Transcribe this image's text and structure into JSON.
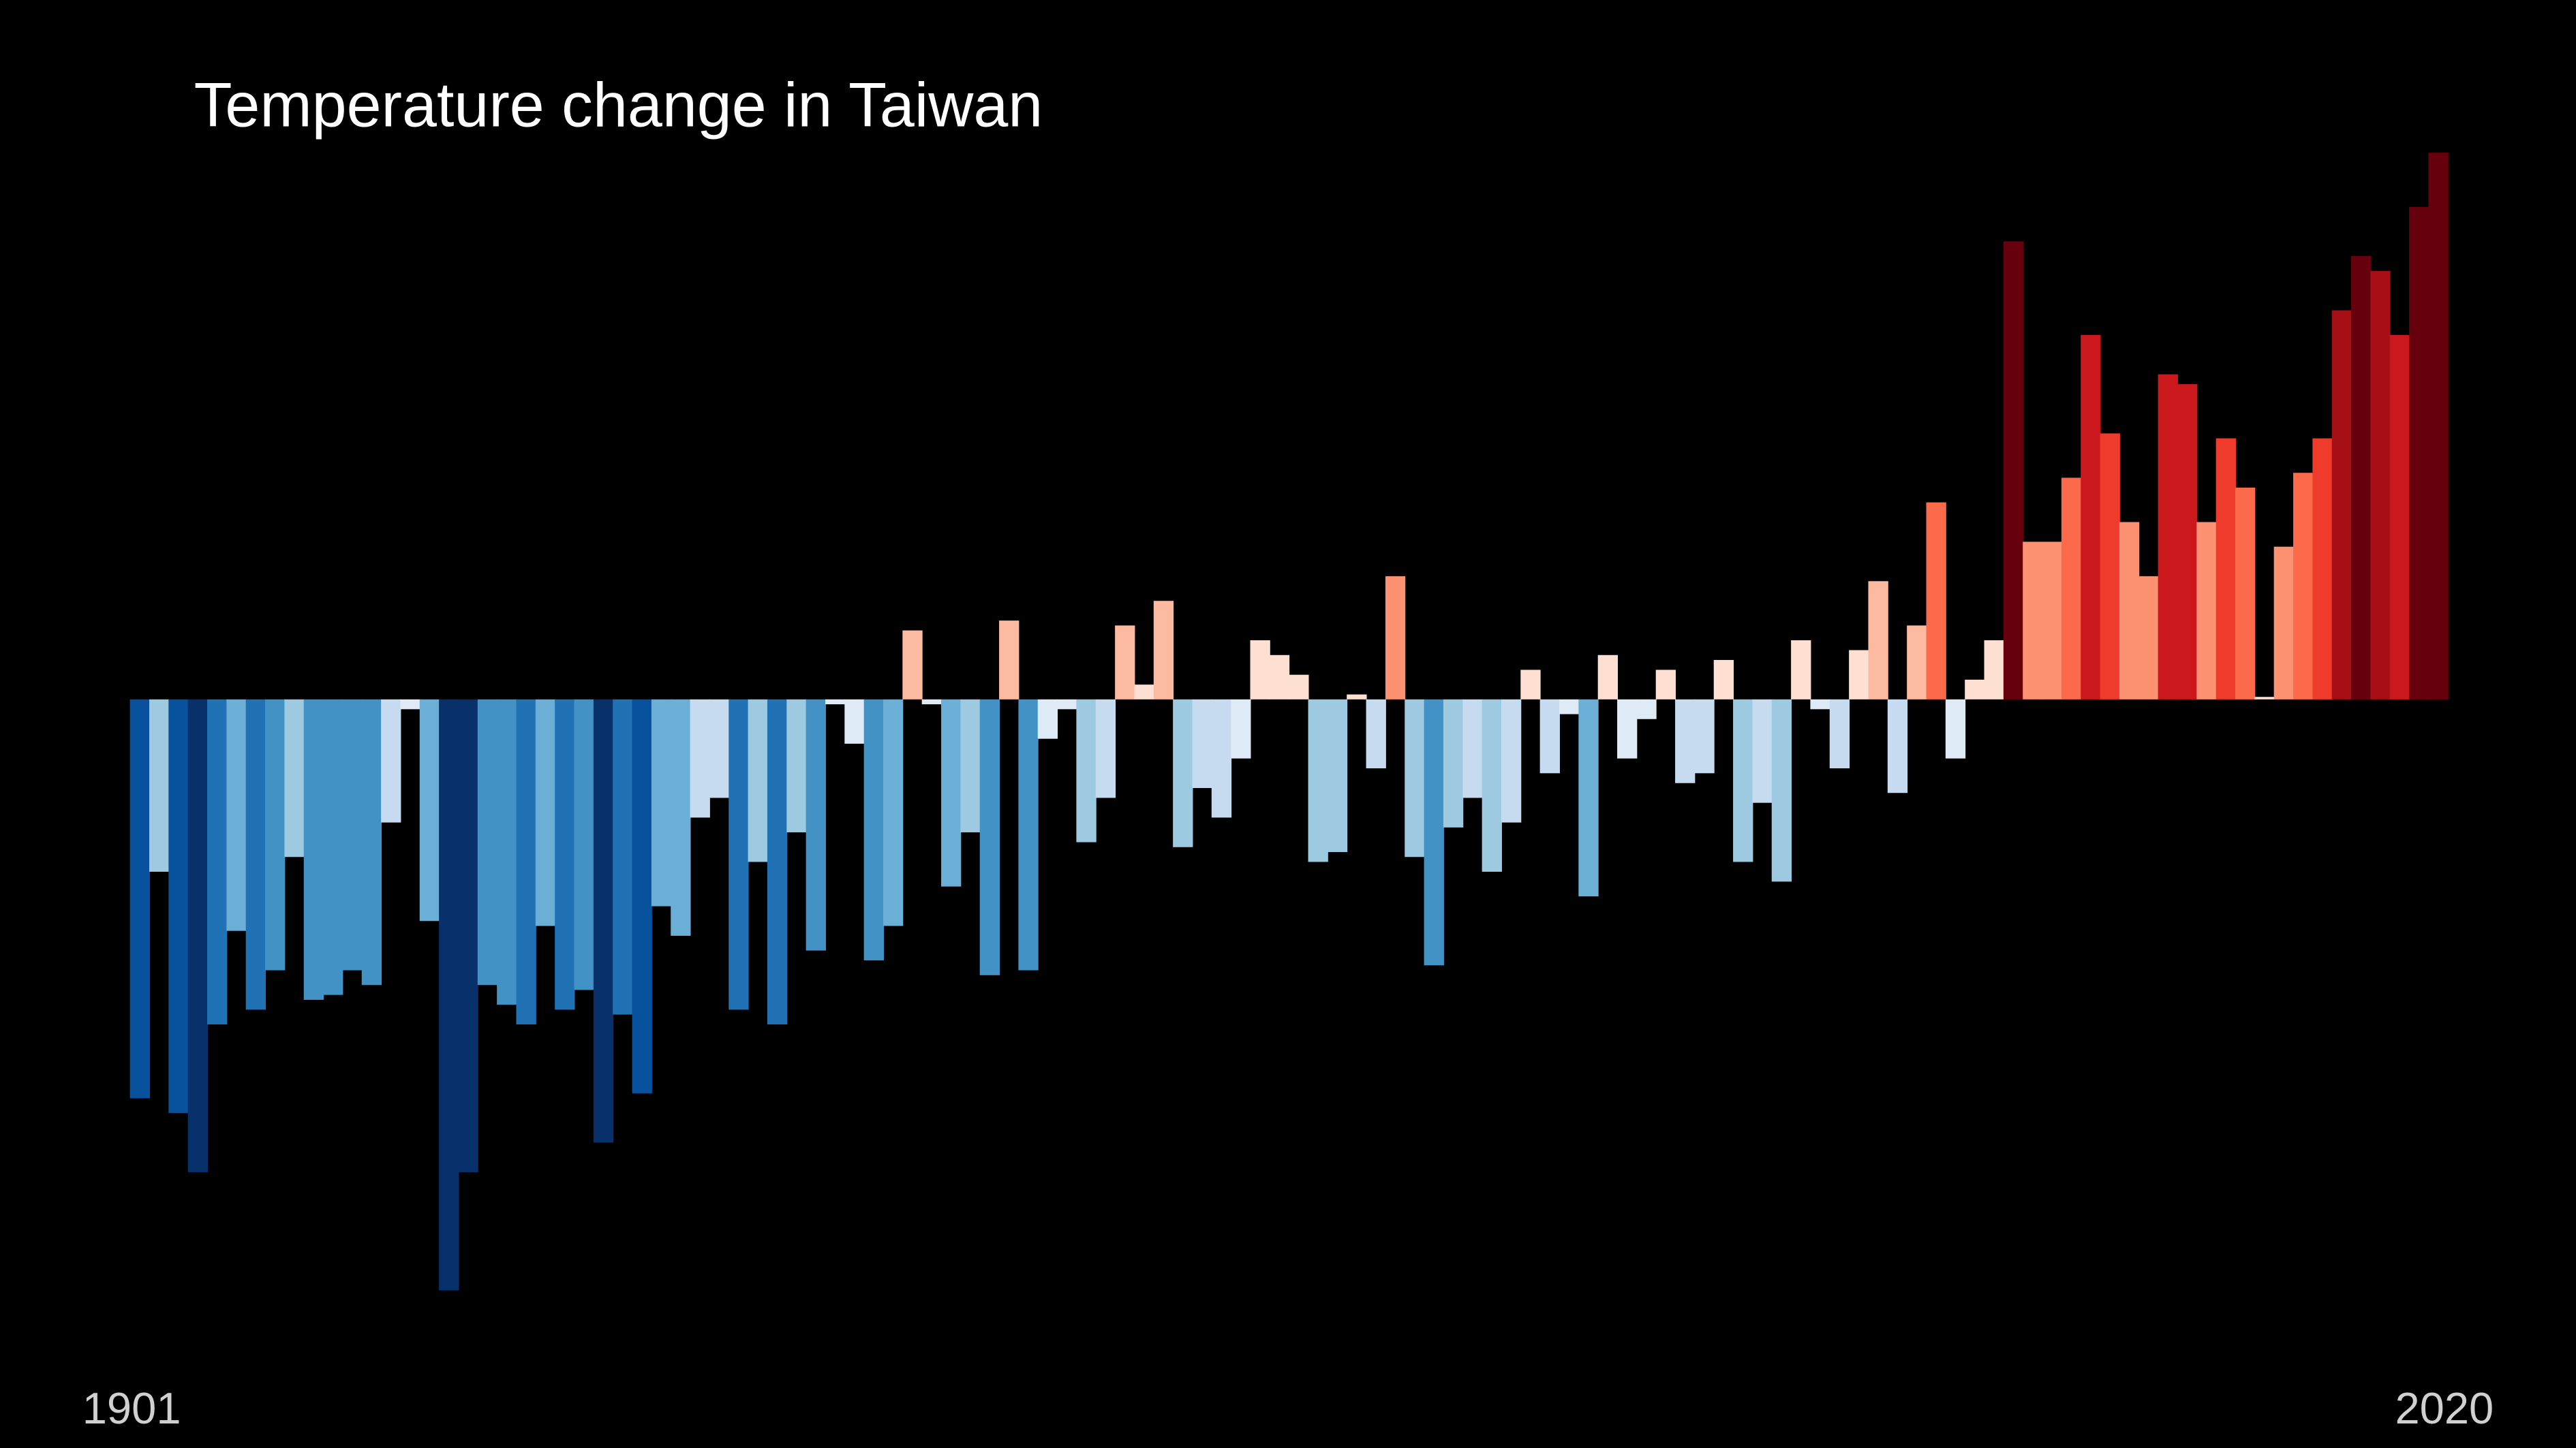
{
  "chart_data": {
    "type": "bar",
    "title": "Temperature change in Taiwan",
    "categories": [
      "1901",
      null,
      null,
      null,
      null,
      null,
      null,
      null,
      null,
      null,
      null,
      null,
      null,
      null,
      null,
      null,
      null,
      null,
      null,
      null,
      null,
      null,
      null,
      null,
      null,
      null,
      null,
      null,
      null,
      null,
      null,
      null,
      null,
      null,
      null,
      null,
      null,
      null,
      null,
      null,
      null,
      null,
      null,
      null,
      null,
      null,
      null,
      null,
      null,
      null,
      null,
      null,
      null,
      null,
      null,
      null,
      null,
      null,
      null,
      null,
      null,
      null,
      null,
      null,
      null,
      null,
      null,
      null,
      null,
      null,
      null,
      null,
      null,
      null,
      null,
      null,
      null,
      null,
      null,
      null,
      null,
      null,
      null,
      null,
      null,
      null,
      null,
      null,
      null,
      null,
      null,
      null,
      null,
      null,
      null,
      null,
      null,
      null,
      null,
      null,
      null,
      null,
      null,
      null,
      null,
      null,
      null,
      null,
      null,
      null,
      null,
      null,
      null,
      null,
      null,
      null,
      null,
      null,
      null,
      "2020"
    ],
    "values": [
      -0.81,
      -0.35,
      -0.84,
      -0.96,
      -0.66,
      -0.47,
      -0.63,
      -0.55,
      -0.32,
      -0.61,
      -0.6,
      -0.55,
      -0.58,
      -0.25,
      -0.02,
      -0.45,
      -1.2,
      -0.96,
      -0.58,
      -0.62,
      -0.66,
      -0.46,
      -0.63,
      -0.59,
      -0.9,
      -0.64,
      -0.8,
      -0.42,
      -0.48,
      -0.24,
      -0.2,
      -0.63,
      -0.33,
      -0.66,
      -0.27,
      -0.51,
      -0.01,
      -0.09,
      -0.53,
      -0.46,
      0.14,
      -0.01,
      -0.38,
      -0.27,
      -0.56,
      0.16,
      -0.55,
      -0.08,
      -0.02,
      -0.29,
      -0.2,
      0.15,
      0.03,
      0.2,
      -0.3,
      -0.18,
      -0.24,
      -0.12,
      0.12,
      0.09,
      0.05,
      -0.33,
      -0.31,
      0.01,
      -0.14,
      0.25,
      -0.32,
      -0.54,
      -0.26,
      -0.2,
      -0.35,
      -0.25,
      0.06,
      -0.15,
      -0.03,
      -0.4,
      0.09,
      -0.12,
      -0.04,
      0.06,
      -0.17,
      -0.15,
      0.08,
      -0.33,
      -0.21,
      -0.37,
      0.12,
      -0.02,
      -0.14,
      0.1,
      0.24,
      -0.19,
      0.15,
      0.4,
      -0.12,
      0.04,
      0.12,
      0.93,
      0.32,
      0.32,
      0.45,
      0.74,
      0.54,
      0.36,
      0.25,
      0.66,
      0.64,
      0.36,
      0.53,
      0.43,
      0.005,
      0.31,
      0.46,
      0.53,
      0.79,
      0.9,
      0.87,
      0.74,
      1.0,
      1.11
    ],
    "ylim": [
      -1.52,
      1.42
    ],
    "colormap": [
      "#08306b",
      "#08519c",
      "#2171b5",
      "#4292c6",
      "#6baed6",
      "#9ecae1",
      "#c6dbef",
      "#deebf7",
      "#fee0d2",
      "#fcbba1",
      "#fc9272",
      "#fb6a4a",
      "#ef3b2c",
      "#cb181d",
      "#a50f15",
      "#67000d"
    ],
    "clim": [
      -1,
      1
    ]
  }
}
